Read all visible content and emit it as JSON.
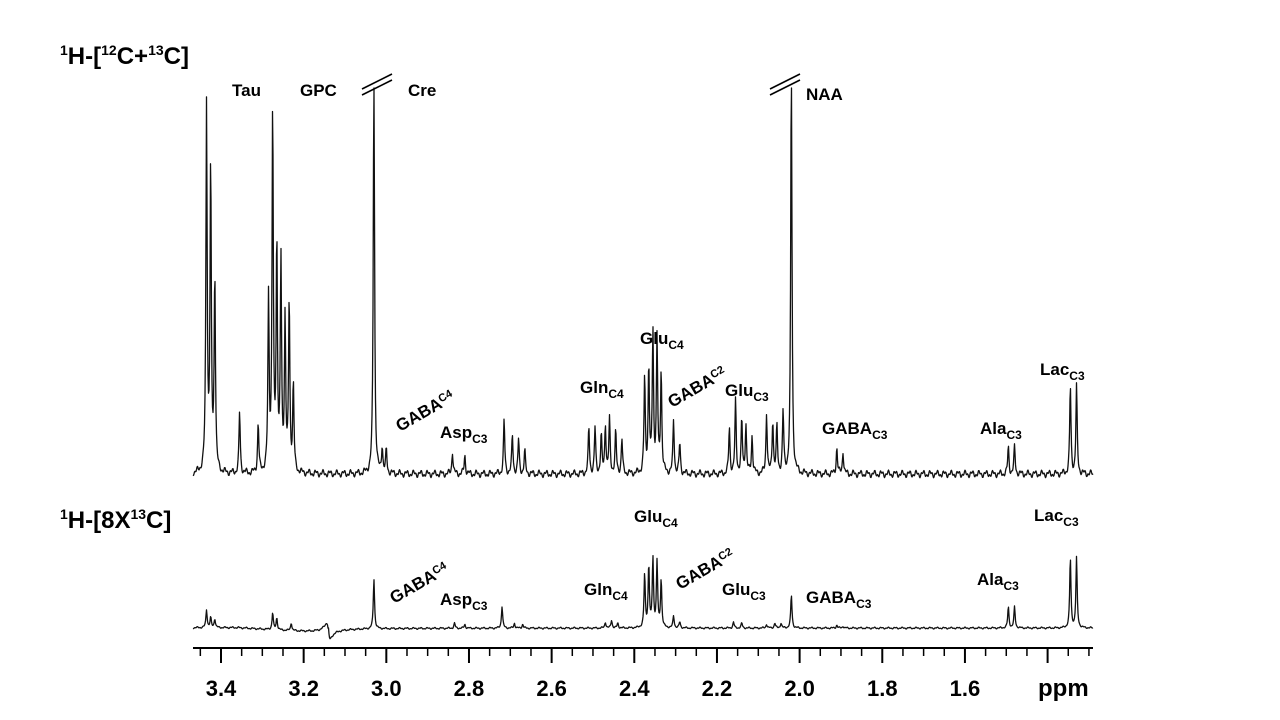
{
  "chart_data": {
    "type": "line",
    "x_axis": {
      "unit_label": "ppm",
      "ticks": [
        "3.4",
        "3.2",
        "3.0",
        "2.8",
        "2.6",
        "2.4",
        "2.2",
        "2.0",
        "1.8",
        "1.6"
      ],
      "range": [
        3.5,
        1.3
      ],
      "reversed": true
    },
    "grid": false,
    "panels": [
      {
        "title": {
          "pre": "1",
          "a": "H-[",
          "sup1": "12",
          "b": "C+",
          "sup2": "13",
          "c": "C]"
        },
        "truncated_peaks": [
          3.03,
          2.02
        ],
        "peaks": [
          {
            "ppm": 3.435,
            "height": 0.97
          },
          {
            "ppm": 3.425,
            "height": 0.8
          },
          {
            "ppm": 3.415,
            "height": 0.52
          },
          {
            "ppm": 3.355,
            "height": 0.16
          },
          {
            "ppm": 3.31,
            "height": 0.13
          },
          {
            "ppm": 3.285,
            "height": 0.45
          },
          {
            "ppm": 3.275,
            "height": 0.96
          },
          {
            "ppm": 3.265,
            "height": 0.6
          },
          {
            "ppm": 3.255,
            "height": 0.55
          },
          {
            "ppm": 3.245,
            "height": 0.4
          },
          {
            "ppm": 3.235,
            "height": 0.45
          },
          {
            "ppm": 3.225,
            "height": 0.23
          },
          {
            "ppm": 3.03,
            "height": 1.1
          },
          {
            "ppm": 3.01,
            "height": 0.07
          },
          {
            "ppm": 3.0,
            "height": 0.06
          },
          {
            "ppm": 2.84,
            "height": 0.06
          },
          {
            "ppm": 2.81,
            "height": 0.05
          },
          {
            "ppm": 2.715,
            "height": 0.14
          },
          {
            "ppm": 2.695,
            "height": 0.1
          },
          {
            "ppm": 2.68,
            "height": 0.09
          },
          {
            "ppm": 2.665,
            "height": 0.06
          },
          {
            "ppm": 2.51,
            "height": 0.12
          },
          {
            "ppm": 2.495,
            "height": 0.12
          },
          {
            "ppm": 2.48,
            "height": 0.1
          },
          {
            "ppm": 2.47,
            "height": 0.13
          },
          {
            "ppm": 2.46,
            "height": 0.14
          },
          {
            "ppm": 2.445,
            "height": 0.11
          },
          {
            "ppm": 2.43,
            "height": 0.09
          },
          {
            "ppm": 2.375,
            "height": 0.25
          },
          {
            "ppm": 2.365,
            "height": 0.28
          },
          {
            "ppm": 2.355,
            "height": 0.37
          },
          {
            "ppm": 2.345,
            "height": 0.35
          },
          {
            "ppm": 2.335,
            "height": 0.27
          },
          {
            "ppm": 2.305,
            "height": 0.14
          },
          {
            "ppm": 2.29,
            "height": 0.08
          },
          {
            "ppm": 2.17,
            "height": 0.12
          },
          {
            "ppm": 2.155,
            "height": 0.19
          },
          {
            "ppm": 2.14,
            "height": 0.14
          },
          {
            "ppm": 2.13,
            "height": 0.13
          },
          {
            "ppm": 2.115,
            "height": 0.1
          },
          {
            "ppm": 2.08,
            "height": 0.16
          },
          {
            "ppm": 2.065,
            "height": 0.14
          },
          {
            "ppm": 2.055,
            "height": 0.12
          },
          {
            "ppm": 2.04,
            "height": 0.16
          },
          {
            "ppm": 2.02,
            "height": 1.1
          },
          {
            "ppm": 1.91,
            "height": 0.07
          },
          {
            "ppm": 1.895,
            "height": 0.06
          },
          {
            "ppm": 1.495,
            "height": 0.07
          },
          {
            "ppm": 1.48,
            "height": 0.07
          },
          {
            "ppm": 1.345,
            "height": 0.23
          },
          {
            "ppm": 1.33,
            "height": 0.23
          }
        ],
        "labels": [
          {
            "text": "Tau",
            "sub": ""
          },
          {
            "text": "GPC",
            "sub": ""
          },
          {
            "text": "Cre",
            "sub": ""
          },
          {
            "text": "NAA",
            "sub": ""
          },
          {
            "text": "GABA",
            "sub": "C4"
          },
          {
            "text": "Asp",
            "sub": "C3"
          },
          {
            "text": "Gln",
            "sub": "C4"
          },
          {
            "text": "Glu",
            "sub": "C4"
          },
          {
            "text": "GABA",
            "sub": "C2"
          },
          {
            "text": "Glu",
            "sub": "C3"
          },
          {
            "text": "GABA",
            "sub": "C3"
          },
          {
            "text": "Ala",
            "sub": "C3"
          },
          {
            "text": "Lac",
            "sub": "C3"
          }
        ]
      },
      {
        "title": {
          "pre": "1",
          "a": "H-[8X",
          "sup1": "13",
          "b": "C]"
        },
        "dispersive_artifact": 3.14,
        "peaks": [
          {
            "ppm": 3.435,
            "height": 0.18
          },
          {
            "ppm": 3.425,
            "height": 0.1
          },
          {
            "ppm": 3.415,
            "height": 0.09
          },
          {
            "ppm": 3.275,
            "height": 0.17
          },
          {
            "ppm": 3.265,
            "height": 0.12
          },
          {
            "ppm": 3.23,
            "height": 0.08
          },
          {
            "ppm": 3.03,
            "height": 0.5
          },
          {
            "ppm": 2.835,
            "height": 0.05
          },
          {
            "ppm": 2.81,
            "height": 0.04
          },
          {
            "ppm": 2.72,
            "height": 0.22
          },
          {
            "ppm": 2.69,
            "height": 0.05
          },
          {
            "ppm": 2.67,
            "height": 0.04
          },
          {
            "ppm": 2.47,
            "height": 0.06
          },
          {
            "ppm": 2.455,
            "height": 0.08
          },
          {
            "ppm": 2.44,
            "height": 0.05
          },
          {
            "ppm": 2.375,
            "height": 0.53
          },
          {
            "ppm": 2.365,
            "height": 0.62
          },
          {
            "ppm": 2.355,
            "height": 0.69
          },
          {
            "ppm": 2.345,
            "height": 0.65
          },
          {
            "ppm": 2.335,
            "height": 0.48
          },
          {
            "ppm": 2.305,
            "height": 0.12
          },
          {
            "ppm": 2.29,
            "height": 0.06
          },
          {
            "ppm": 2.16,
            "height": 0.06
          },
          {
            "ppm": 2.14,
            "height": 0.05
          },
          {
            "ppm": 2.08,
            "height": 0.04
          },
          {
            "ppm": 2.06,
            "height": 0.05
          },
          {
            "ppm": 2.045,
            "height": 0.05
          },
          {
            "ppm": 2.02,
            "height": 0.33
          },
          {
            "ppm": 1.91,
            "height": 0.03
          },
          {
            "ppm": 1.895,
            "height": 0.02
          },
          {
            "ppm": 1.495,
            "height": 0.21
          },
          {
            "ppm": 1.48,
            "height": 0.21
          },
          {
            "ppm": 1.345,
            "height": 0.7
          },
          {
            "ppm": 1.33,
            "height": 0.7
          }
        ],
        "labels": [
          {
            "text": "GABA",
            "sub": "C4"
          },
          {
            "text": "Asp",
            "sub": "C3"
          },
          {
            "text": "Gln",
            "sub": "C4"
          },
          {
            "text": "Glu",
            "sub": "C4"
          },
          {
            "text": "GABA",
            "sub": "C2"
          },
          {
            "text": "Glu",
            "sub": "C3"
          },
          {
            "text": "GABA",
            "sub": "C3"
          },
          {
            "text": "Ala",
            "sub": "C3"
          },
          {
            "text": "Lac",
            "sub": "C3"
          }
        ]
      }
    ]
  }
}
